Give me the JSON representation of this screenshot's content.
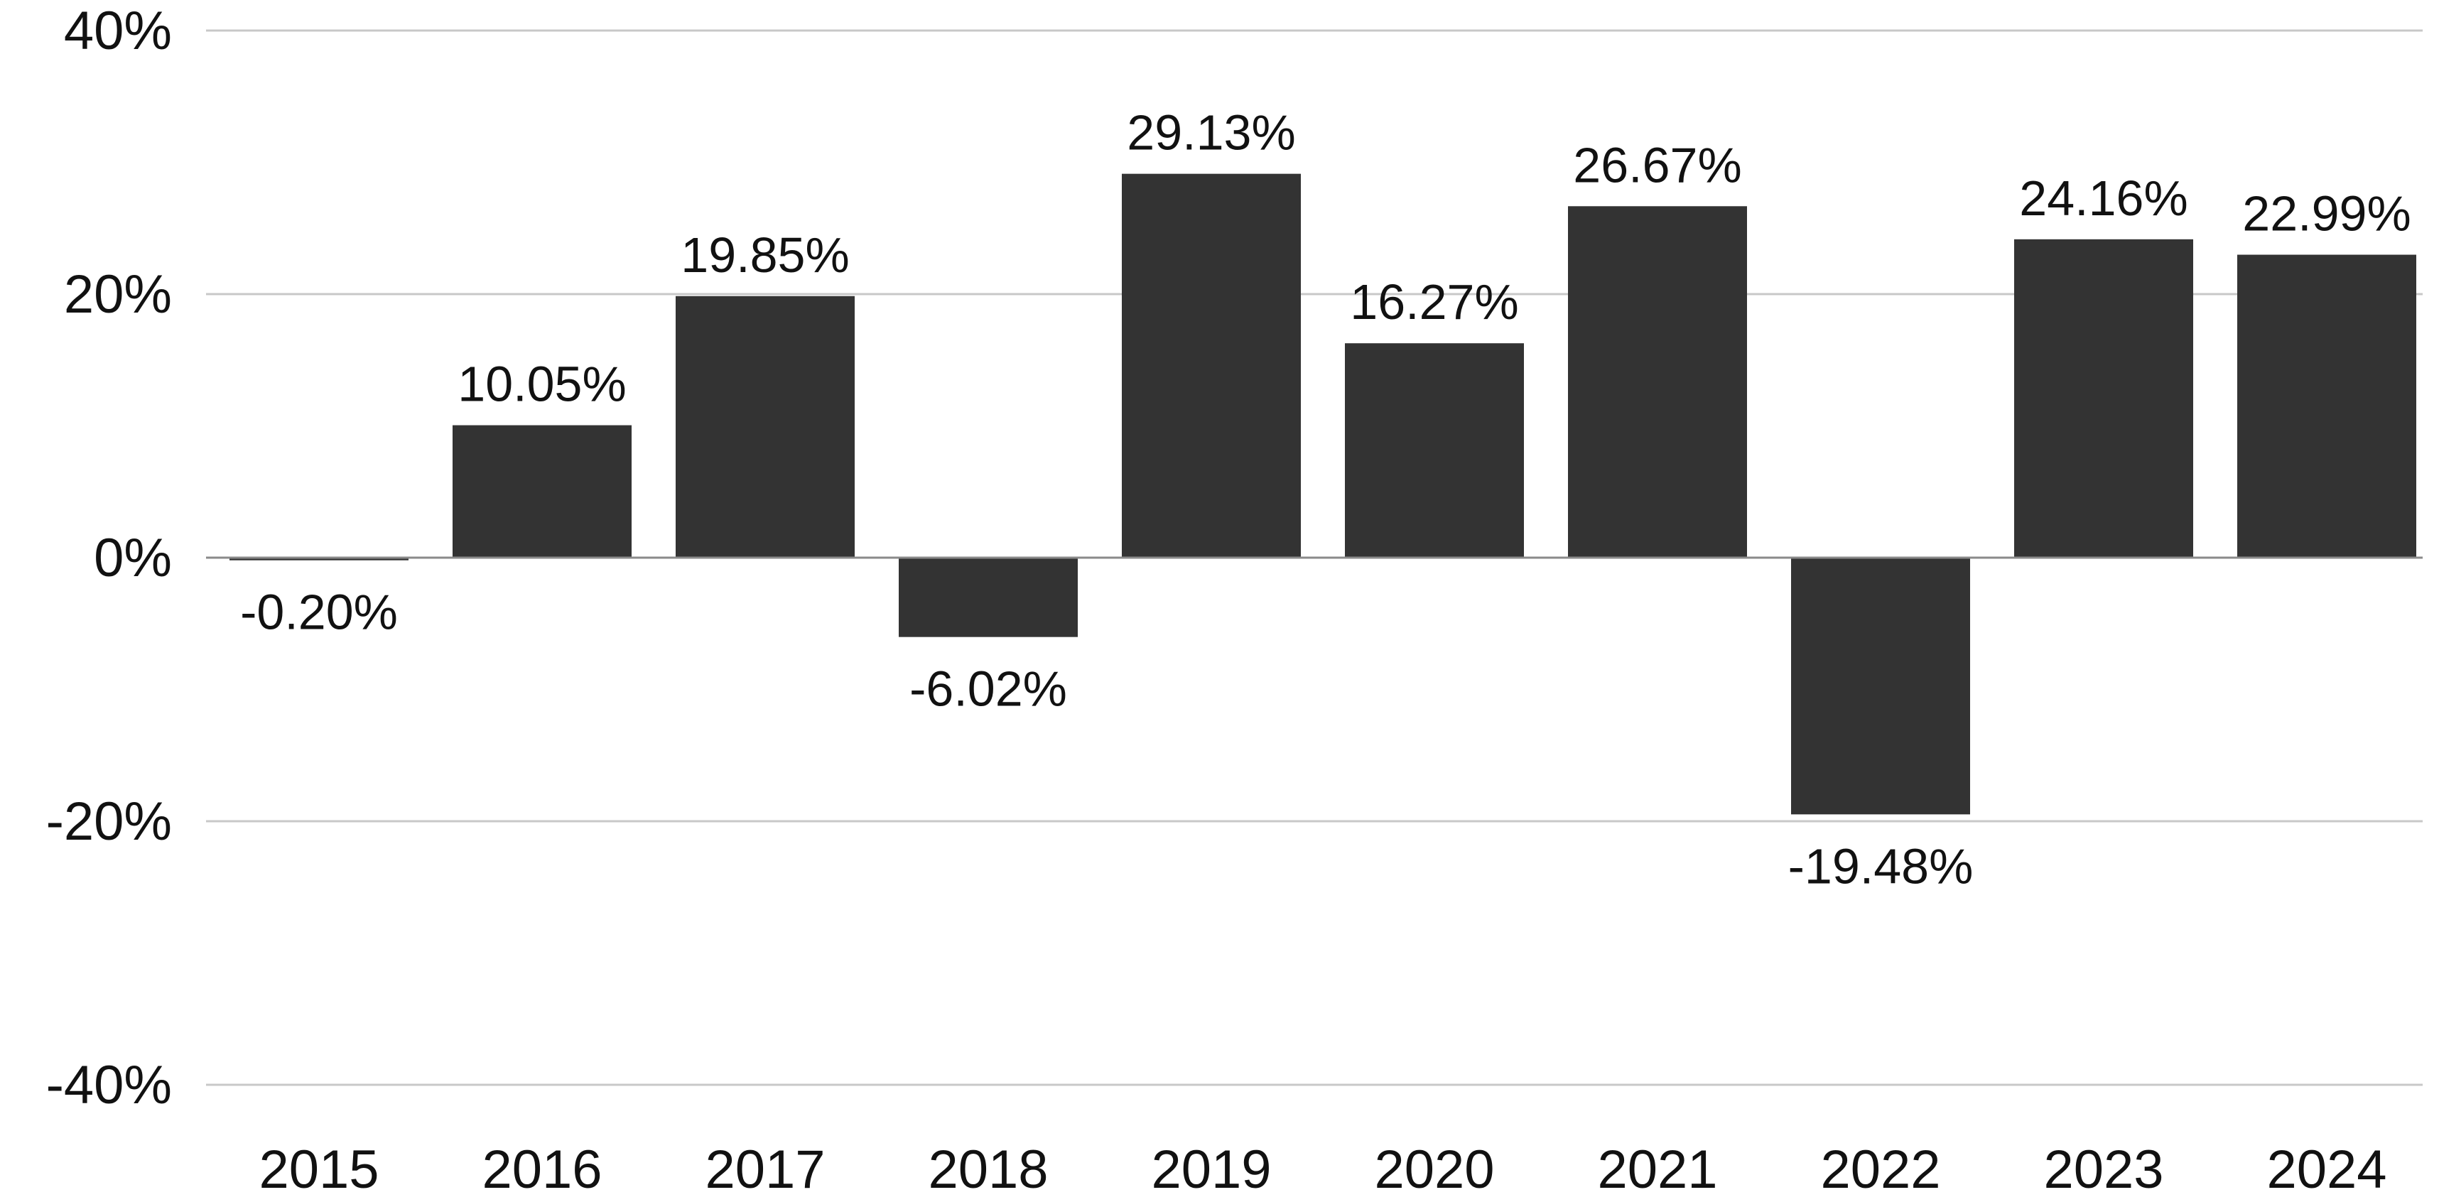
{
  "chart_data": {
    "type": "bar",
    "title": "",
    "xlabel": "",
    "ylabel": "",
    "categories": [
      "2015",
      "2016",
      "2017",
      "2018",
      "2019",
      "2020",
      "2021",
      "2022",
      "2023",
      "2024"
    ],
    "values": [
      -0.2,
      10.05,
      19.85,
      -6.02,
      29.13,
      16.27,
      26.67,
      -19.48,
      24.16,
      22.99
    ],
    "data_labels": [
      "-0.20%",
      "10.05%",
      "19.85%",
      "-6.02%",
      "29.13%",
      "16.27%",
      "26.67%",
      "-19.48%",
      "24.16%",
      "22.99%"
    ],
    "ylim": [
      -40,
      40
    ],
    "y_ticks": [
      40,
      20,
      0,
      -20,
      -40
    ],
    "y_tick_labels": [
      "40%",
      "20%",
      "0%",
      "-20%",
      "-40%"
    ],
    "grid": true,
    "legend": "none",
    "colors": {
      "bar": "#333333",
      "grid": "#c8c8c8",
      "zero_line": "#8a8a8a",
      "text": "#111111"
    }
  }
}
